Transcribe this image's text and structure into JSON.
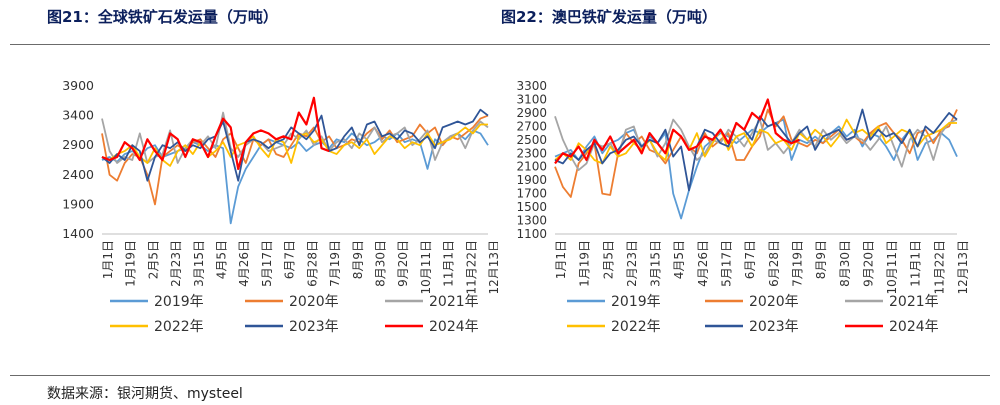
{
  "figure_titles": {
    "left": "图21：全球铁矿石发运量（万吨）",
    "right": "图22：澳巴铁矿发运量（万吨）"
  },
  "source": "数据来源：银河期货、mysteel",
  "colors": {
    "2019年": "#5b9bd5",
    "2020年": "#ed7d31",
    "2021年": "#a5a5a5",
    "2022年": "#ffc000",
    "2023年": "#2f5597",
    "2024年": "#ff0000"
  },
  "chart_data": [
    {
      "type": "line",
      "title": "",
      "x_labels": [
        "1月1日",
        "1月19日",
        "2月5日",
        "2月23日",
        "3月15日",
        "4月5日",
        "4月26日",
        "5月17日",
        "6月7日",
        "6月28日",
        "7月19日",
        "8月9日",
        "8月30日",
        "9月20日",
        "10月11日",
        "11月1日",
        "11月22日",
        "12月13日"
      ],
      "ylim": [
        1400,
        3900
      ],
      "yticks": [
        1400,
        1900,
        2400,
        2900,
        3400,
        3900
      ],
      "grid": false,
      "legend_position": "bottom",
      "n_points": 52,
      "series": [
        {
          "name": "2019年",
          "values": [
            2650,
            2700,
            2620,
            2750,
            2800,
            2700,
            2850,
            2900,
            2700,
            2750,
            2800,
            2850,
            2950,
            2900,
            2800,
            2900,
            2850,
            1580,
            2200,
            2500,
            2700,
            2900,
            3000,
            2950,
            2900,
            2850,
            2950,
            2800,
            2900,
            2950,
            2850,
            3000,
            2950,
            3100,
            3000,
            2900,
            2950,
            3050,
            3000,
            3100,
            2950,
            3000,
            2950,
            2500,
            3000,
            2900,
            3050,
            3100,
            3000,
            3150,
            3100,
            2900
          ]
        },
        {
          "name": "2020年",
          "values": [
            3100,
            2400,
            2300,
            2600,
            2750,
            2700,
            2400,
            1900,
            2700,
            2800,
            2900,
            2800,
            2950,
            3000,
            2850,
            2700,
            3000,
            3100,
            2850,
            2600,
            3000,
            2900,
            3000,
            2750,
            2700,
            2900,
            3100,
            3050,
            3200,
            2950,
            3050,
            2850,
            2900,
            3000,
            2950,
            3100,
            3200,
            3000,
            3150,
            2950,
            3000,
            3050,
            3250,
            3100,
            3200,
            2900,
            3050,
            3000,
            3100,
            3200,
            3350,
            3400
          ]
        },
        {
          "name": "2021年",
          "values": [
            3350,
            2800,
            2600,
            2700,
            2650,
            3100,
            2600,
            2700,
            2750,
            3150,
            2600,
            2850,
            3000,
            2900,
            3050,
            2850,
            3450,
            2850,
            2700,
            2900,
            3000,
            2950,
            2800,
            2850,
            2900,
            3100,
            3000,
            3150,
            2900,
            3050,
            2800,
            2950,
            3000,
            2850,
            3100,
            3000,
            3200,
            2950,
            3050,
            3100,
            3200,
            2900,
            3000,
            3150,
            2650,
            2950,
            3050,
            3100,
            2850,
            3150,
            3300,
            3200
          ]
        },
        {
          "name": "2022年",
          "values": [
            2700,
            2650,
            2750,
            2800,
            2900,
            2700,
            2600,
            2850,
            2650,
            2550,
            2800,
            2900,
            2750,
            2950,
            2700,
            2800,
            2950,
            2700,
            2900,
            2950,
            3050,
            2850,
            2700,
            3000,
            2950,
            2600,
            3050,
            3100,
            2950,
            3000,
            2800,
            2750,
            2900,
            2950,
            2850,
            3000,
            2750,
            2900,
            3050,
            3000,
            2850,
            2950,
            2900,
            3100,
            2900,
            2950,
            3000,
            3100,
            3200,
            3100,
            3250,
            3250
          ]
        },
        {
          "name": "2023年",
          "values": [
            2700,
            2600,
            2750,
            2650,
            2900,
            2800,
            2300,
            2700,
            2900,
            2850,
            2950,
            2800,
            2900,
            2850,
            3000,
            3050,
            3300,
            2800,
            2300,
            2950,
            3000,
            2950,
            2850,
            2950,
            3000,
            3200,
            3100,
            3000,
            3150,
            3400,
            2800,
            2850,
            3050,
            3200,
            2900,
            3250,
            3300,
            3050,
            3100,
            3000,
            3150,
            3100,
            2950,
            3050,
            2850,
            3200,
            3250,
            3300,
            3250,
            3300,
            3500,
            3400
          ]
        },
        {
          "name": "2024年",
          "values": [
            2700,
            2650,
            2700,
            2950,
            2850,
            2650,
            3000,
            2800,
            2650,
            3100,
            3000,
            2700,
            3000,
            2950,
            2700,
            3050,
            3350,
            3200,
            2500,
            2950,
            3100,
            3150,
            3100,
            3000,
            3050,
            3000,
            3450,
            3250,
            3700,
            2850,
            2800
          ]
        }
      ]
    },
    {
      "type": "line",
      "title": "",
      "x_labels": [
        "1月1日",
        "1月19日",
        "2月5日",
        "2月23日",
        "3月15日",
        "4月5日",
        "4月26日",
        "5月17日",
        "6月7日",
        "6月28日",
        "7月19日",
        "8月9日",
        "8月30日",
        "9月20日",
        "10月11日",
        "11月1日",
        "11月22日",
        "12月13日"
      ],
      "ylim": [
        1100,
        3300
      ],
      "yticks": [
        1100,
        1300,
        1500,
        1700,
        1900,
        2100,
        2300,
        2500,
        2700,
        2900,
        3100,
        3300
      ],
      "grid": false,
      "legend_position": "bottom",
      "n_points": 52,
      "series": [
        {
          "name": "2019年",
          "values": [
            2250,
            2300,
            2350,
            2200,
            2400,
            2550,
            2300,
            2450,
            2500,
            2600,
            2650,
            2400,
            2550,
            2450,
            2600,
            1700,
            1330,
            1750,
            2100,
            2400,
            2500,
            2600,
            2550,
            2450,
            2550,
            2650,
            2600,
            2700,
            2750,
            2800,
            2200,
            2500,
            2450,
            2550,
            2450,
            2600,
            2700,
            2550,
            2650,
            2400,
            2600,
            2550,
            2400,
            2200,
            2500,
            2650,
            2200,
            2450,
            2500,
            2600,
            2500,
            2250
          ]
        },
        {
          "name": "2020年",
          "values": [
            2100,
            1800,
            1650,
            2150,
            2300,
            2450,
            1700,
            1680,
            2300,
            2600,
            2450,
            2550,
            2350,
            2300,
            2150,
            2350,
            2550,
            2400,
            2300,
            2600,
            2400,
            2500,
            2600,
            2200,
            2200,
            2400,
            2550,
            2950,
            2700,
            2850,
            2500,
            2450,
            2400,
            2500,
            2450,
            2550,
            2650,
            2500,
            2550,
            2450,
            2600,
            2700,
            2750,
            2600,
            2500,
            2300,
            2600,
            2650,
            2450,
            2650,
            2700,
            2950
          ]
        },
        {
          "name": "2021年",
          "values": [
            2850,
            2500,
            2250,
            2050,
            2150,
            2450,
            2400,
            2450,
            2250,
            2650,
            2700,
            2350,
            2500,
            2250,
            2450,
            2800,
            2650,
            2400,
            2200,
            2300,
            2500,
            2450,
            2650,
            2550,
            2400,
            2600,
            2800,
            2350,
            2450,
            2300,
            2450,
            2650,
            2500,
            2400,
            2650,
            2500,
            2600,
            2450,
            2550,
            2500,
            2350,
            2500,
            2700,
            2400,
            2100,
            2500,
            2650,
            2550,
            2200,
            2600,
            2750,
            2800
          ]
        },
        {
          "name": "2022年",
          "values": [
            2200,
            2300,
            2200,
            2450,
            2350,
            2200,
            2150,
            2400,
            2250,
            2300,
            2450,
            2350,
            2500,
            2300,
            2200,
            2650,
            2550,
            2350,
            2600,
            2250,
            2450,
            2650,
            2350,
            2550,
            2600,
            2400,
            2650,
            2600,
            2450,
            2500,
            2350,
            2600,
            2500,
            2650,
            2550,
            2400,
            2550,
            2800,
            2600,
            2650,
            2550,
            2700,
            2450,
            2550,
            2650,
            2600,
            2400,
            2550,
            2600,
            2650,
            2750,
            2750
          ]
        },
        {
          "name": "2023年",
          "values": [
            2200,
            2150,
            2300,
            2200,
            2350,
            2450,
            2150,
            2300,
            2350,
            2500,
            2550,
            2400,
            2500,
            2450,
            2650,
            2250,
            2400,
            1750,
            2400,
            2650,
            2600,
            2450,
            2400,
            2750,
            2650,
            2500,
            2850,
            2700,
            2750,
            2600,
            2450,
            2600,
            2700,
            2350,
            2550,
            2600,
            2650,
            2500,
            2550,
            2950,
            2500,
            2650,
            2550,
            2600,
            2450,
            2650,
            2400,
            2700,
            2600,
            2750,
            2900,
            2800
          ]
        },
        {
          "name": "2024年",
          "values": [
            2150,
            2300,
            2250,
            2400,
            2200,
            2500,
            2350,
            2550,
            2300,
            2400,
            2500,
            2300,
            2600,
            2450,
            2300,
            2650,
            2550,
            2350,
            2400,
            2550,
            2500,
            2650,
            2450,
            2750,
            2650,
            2900,
            2800,
            3100,
            2600,
            2500,
            2450,
            2500
          ]
        }
      ]
    }
  ]
}
